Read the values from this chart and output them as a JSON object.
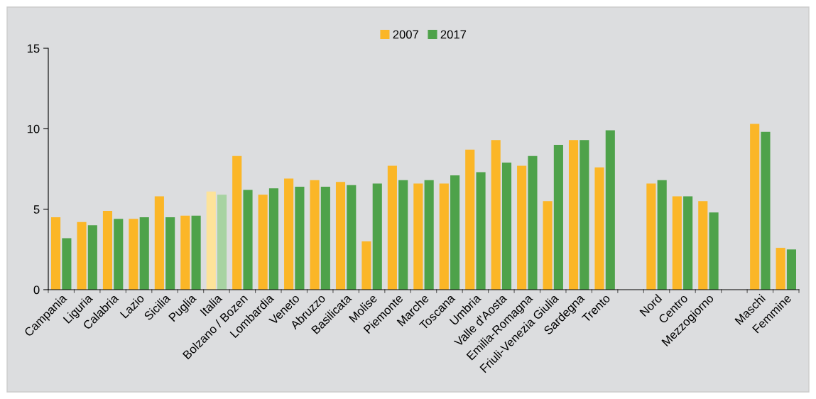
{
  "chart_data": {
    "type": "bar",
    "categories": [
      "Campania",
      "Liguria",
      "Calabria",
      "Lazio",
      "Sicilia",
      "Puglia",
      "Italia",
      "Bolzano / Bozen",
      "Lombardia",
      "Veneto",
      "Abruzzo",
      "Basilicata",
      "Molise",
      "Piemonte",
      "Marche",
      "Toscana",
      "Umbria",
      "Valle d'Aosta",
      "Emilia-Romagna",
      "Friuli-Venezia Giulia",
      "Sardegna",
      "Trento",
      null,
      "Nord",
      "Centro",
      "Mezzogiorno",
      null,
      "Maschi",
      "Femmine"
    ],
    "series": [
      {
        "name": "2007",
        "color": "#fbb627",
        "colors": [
          "#fbb627",
          "#fbb627",
          "#fbb627",
          "#fbb627",
          "#fbb627",
          "#fbb627",
          "#fde39a",
          "#fbb627",
          "#fbb627",
          "#fbb627",
          "#fbb627",
          "#fbb627",
          "#fbb627",
          "#fbb627",
          "#fbb627",
          "#fbb627",
          "#fbb627",
          "#fbb627",
          "#fbb627",
          "#fbb627",
          "#fbb627",
          "#fbb627",
          "#fbb627",
          "#fbb627",
          "#fbb627",
          "#fbb627",
          "#fbb627",
          "#fbb627",
          "#fbb627"
        ],
        "values": [
          4.5,
          4.2,
          4.9,
          4.4,
          5.8,
          4.6,
          6.1,
          8.3,
          5.9,
          6.9,
          6.8,
          6.7,
          3.0,
          7.7,
          6.6,
          6.6,
          8.7,
          9.3,
          7.7,
          5.5,
          9.3,
          7.6,
          null,
          6.6,
          5.8,
          5.5,
          null,
          10.3,
          2.6
        ]
      },
      {
        "name": "2017",
        "color": "#4ea24a",
        "colors": [
          "#4ea24a",
          "#4ea24a",
          "#4ea24a",
          "#4ea24a",
          "#4ea24a",
          "#4ea24a",
          "#a7d3a2",
          "#4ea24a",
          "#4ea24a",
          "#4ea24a",
          "#4ea24a",
          "#4ea24a",
          "#4ea24a",
          "#4ea24a",
          "#4ea24a",
          "#4ea24a",
          "#4ea24a",
          "#4ea24a",
          "#4ea24a",
          "#4ea24a",
          "#4ea24a",
          "#4ea24a",
          "#4ea24a",
          "#4ea24a",
          "#4ea24a",
          "#4ea24a",
          "#4ea24a",
          "#4ea24a",
          "#4ea24a"
        ],
        "values": [
          3.2,
          4.0,
          4.4,
          4.5,
          4.5,
          4.6,
          5.9,
          6.2,
          6.3,
          6.4,
          6.4,
          6.5,
          6.6,
          6.8,
          6.8,
          7.1,
          7.3,
          7.9,
          8.3,
          9.0,
          9.3,
          9.9,
          null,
          6.8,
          5.8,
          4.8,
          null,
          9.8,
          2.5
        ]
      }
    ],
    "ylim": [
      0,
      15
    ],
    "yticks": [
      0,
      5,
      10,
      15
    ],
    "grid": false,
    "legend": "top"
  }
}
